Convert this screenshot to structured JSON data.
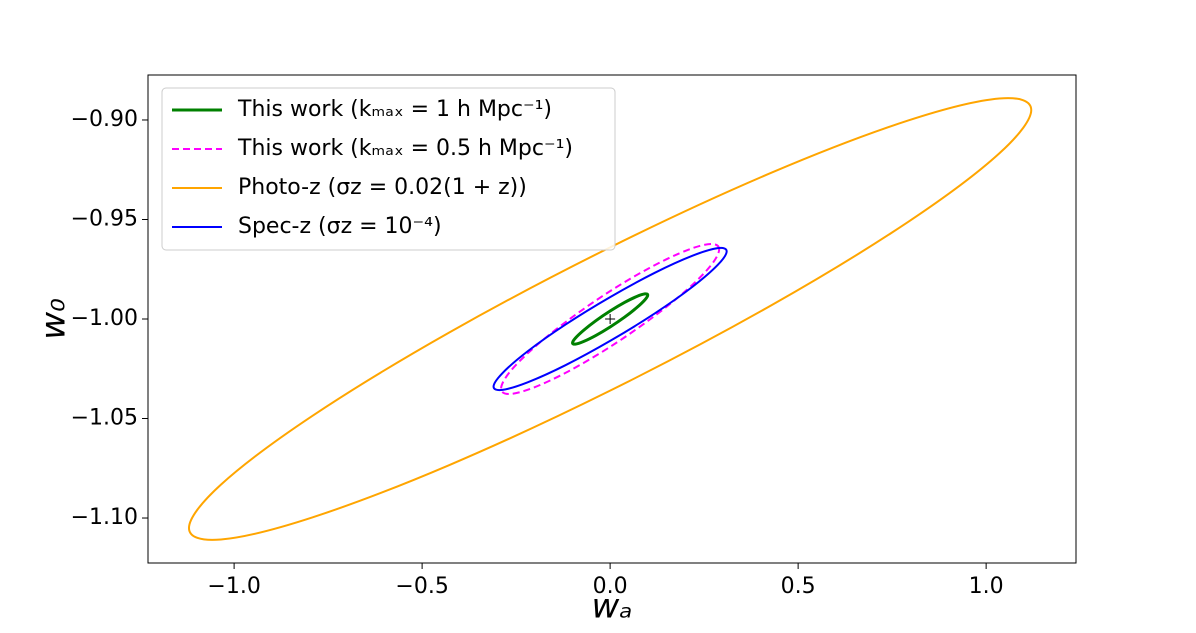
{
  "chart_data": {
    "type": "line",
    "xlabel": "wₐ",
    "ylabel": "w₀",
    "xlim": [
      -1.229,
      1.239
    ],
    "ylim": [
      -1.1226,
      -0.8774
    ],
    "xticks": [
      {
        "value": -1.0,
        "label": "−1.0"
      },
      {
        "value": -0.5,
        "label": "−0.5"
      },
      {
        "value": 0,
        "label": "0.0"
      },
      0.5,
      {
        "value": 1.0,
        "label": "1.0"
      }
    ],
    "yticks": [
      {
        "value": -0.9,
        "label": "−0.90"
      },
      {
        "value": -0.95,
        "label": "−0.95"
      },
      {
        "value": -1.0,
        "label": "−1.00"
      },
      {
        "value": -1.05,
        "label": "−1.05"
      },
      {
        "value": -1.1,
        "label": "−1.10"
      }
    ],
    "legend": "upper left",
    "marker": {
      "x": 0,
      "y": -1
    },
    "series": [
      {
        "name": "This work (kₘₐₓ = 1 h Mpc⁻¹)",
        "color": "#008000",
        "dash": false,
        "x": [
          0.1,
          0.0924,
          0.0707,
          0.0383,
          0,
          -0.0383,
          -0.0707,
          -0.0924,
          -0.1,
          -0.0924,
          -0.0707,
          -0.0383,
          0,
          0.0383,
          0.0707,
          0.0924
        ],
        "y": [
          -0.988,
          -0.9874,
          -0.9887,
          -0.9917,
          -0.996,
          -1.0009,
          -1.0057,
          -1.0096,
          -1.012,
          -1.0126,
          -1.0113,
          -1.0083,
          -1.004,
          -0.9991,
          -0.9943,
          -0.9904
        ]
      },
      {
        "name": "This work (kₘₐₓ = 0.5 h Mpc⁻¹)",
        "color": "#ff00ff",
        "dash": true,
        "x": [
          0.29,
          0.268,
          0.205,
          0.111,
          0,
          -0.111,
          -0.205,
          -0.268,
          -0.29,
          -0.268,
          -0.205,
          -0.111,
          0,
          0.111,
          0.205,
          0.268
        ],
        "y": [
          -0.965,
          -0.9623,
          -0.9654,
          -0.9737,
          -0.986,
          -1.0005,
          -1.0148,
          -1.0269,
          -1.035,
          -1.0377,
          -1.0346,
          -1.0263,
          -1.014,
          -0.9995,
          -0.9852,
          -0.9731
        ]
      },
      {
        "name": "Photo-z (σz = 0.02(1 + z))",
        "color": "#ffa500",
        "dash": false,
        "x": [
          1.12,
          1.035,
          0.792,
          0.429,
          0,
          -0.429,
          -0.792,
          -1.035,
          -1.12,
          -1.035,
          -0.792,
          -0.429,
          0,
          0.429,
          0.792,
          1.035
        ],
        "y": [
          -0.895,
          -0.8892,
          -0.9003,
          -0.9265,
          -0.964,
          -1.0069,
          -1.0487,
          -1.0832,
          -1.105,
          -1.1108,
          -1.0997,
          -1.0735,
          -1.036,
          -0.9931,
          -0.9513,
          -0.9168
        ]
      },
      {
        "name": "Spec-z (σz = 10⁻⁴)",
        "color": "#0000ff",
        "dash": false,
        "x": [
          0.31,
          0.2864,
          0.2192,
          0.1187,
          0,
          -0.1187,
          -0.2192,
          -0.2864,
          -0.31,
          -0.2864,
          -0.2192,
          -0.1187,
          0,
          0.1187,
          0.2192,
          0.2864
        ],
        "y": [
          -0.966,
          -0.9644,
          -0.9682,
          -0.9768,
          -0.989,
          -1.0028,
          -1.0162,
          -1.0272,
          -1.034,
          -1.0356,
          -1.0318,
          -1.0232,
          -1.011,
          -0.9972,
          -0.9838,
          -0.9728
        ]
      }
    ]
  }
}
